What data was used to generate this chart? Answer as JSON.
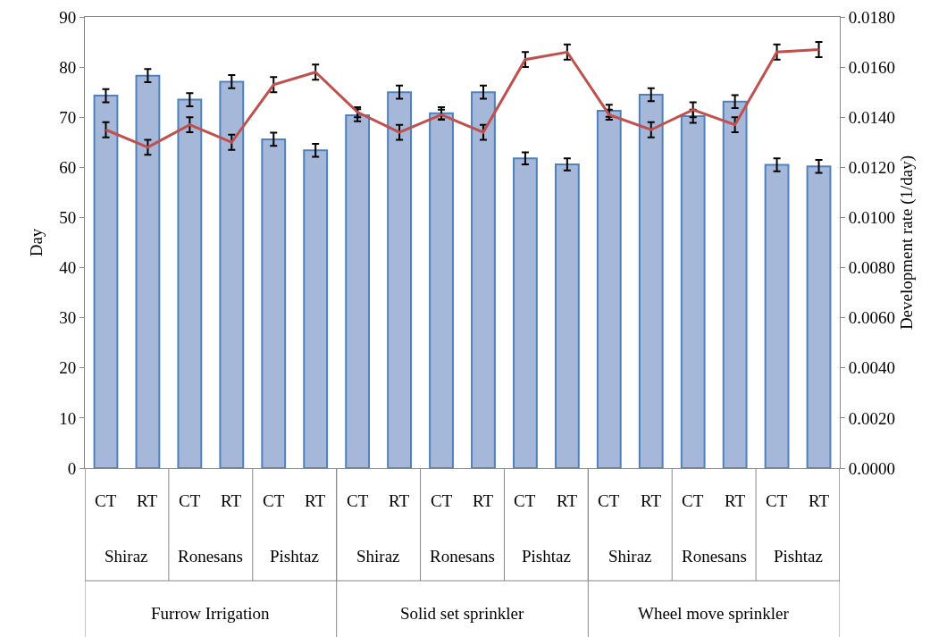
{
  "chart_data": {
    "type": "bar",
    "ylabel": "Day",
    "y2label": "Development rate (1/day)",
    "categories": [
      "CT",
      "RT",
      "CT",
      "RT",
      "CT",
      "RT",
      "CT",
      "RT",
      "CT",
      "RT",
      "CT",
      "RT",
      "CT",
      "RT",
      "CT",
      "RT",
      "CT",
      "RT"
    ],
    "annotations": [
      "Shiraz",
      "Ronesans",
      "Pishtaz",
      "Shiraz",
      "Ronesans",
      "Pishtaz",
      "Shiraz",
      "Ronesans",
      "Pishtaz",
      "Furrow Irrigation",
      "Solid set sprinkler",
      "Wheel move sprinkler"
    ],
    "series": [
      {
        "color": "#a5b8da",
        "values": [
          74.3,
          78.3,
          73.5,
          77.1,
          65.6,
          63.4,
          70.4,
          75.0,
          70.8,
          75.0,
          61.8,
          60.6,
          71.3,
          74.5,
          70.2,
          73.1,
          60.5,
          60.2
        ],
        "errors": [
          1.3,
          1.3,
          1.3,
          1.3,
          1.3,
          1.3,
          1.2,
          1.3,
          1.2,
          1.3,
          1.2,
          1.2,
          1.2,
          1.3,
          1.3,
          1.3,
          1.3,
          1.3
        ]
      },
      {
        "type": "line",
        "axis": "y2",
        "color": "#c0504d",
        "values": [
          0.0135,
          0.0128,
          0.0137,
          0.013,
          0.0153,
          0.0158,
          0.0142,
          0.0134,
          0.0141,
          0.0134,
          0.0163,
          0.0166,
          0.0141,
          0.0135,
          0.0143,
          0.0137,
          0.0166,
          0.0167
        ],
        "errors": [
          0.0003,
          0.0003,
          0.0003,
          0.0003,
          0.0003,
          0.0003,
          0.0002,
          0.0003,
          0.0002,
          0.0003,
          0.0003,
          0.0003,
          0.0002,
          0.0003,
          0.0003,
          0.0003,
          0.0003,
          0.0003
        ]
      }
    ],
    "ylim": [
      0,
      90
    ],
    "yticks": [
      0,
      10,
      20,
      30,
      40,
      50,
      60,
      70,
      80,
      90
    ],
    "y2lim": [
      0,
      0.018
    ],
    "y2ticks": [
      {
        "value": 0,
        "label": "0.0000"
      },
      {
        "value": 0.002,
        "label": "0.0020"
      },
      {
        "value": 0.004,
        "label": "0.0040"
      },
      {
        "value": 0.006,
        "label": "0.0060"
      },
      {
        "value": 0.008,
        "label": "0.0080"
      },
      {
        "value": 0.01,
        "label": "0.0100"
      },
      {
        "value": 0.012,
        "label": "0.0120"
      },
      {
        "value": 0.014,
        "label": "0.0140"
      },
      {
        "value": 0.016,
        "label": "0.0160"
      },
      {
        "value": 0.018,
        "label": "0.0180"
      }
    ],
    "grid": false,
    "legend": false,
    "marker": "none",
    "line_style": "solid"
  }
}
